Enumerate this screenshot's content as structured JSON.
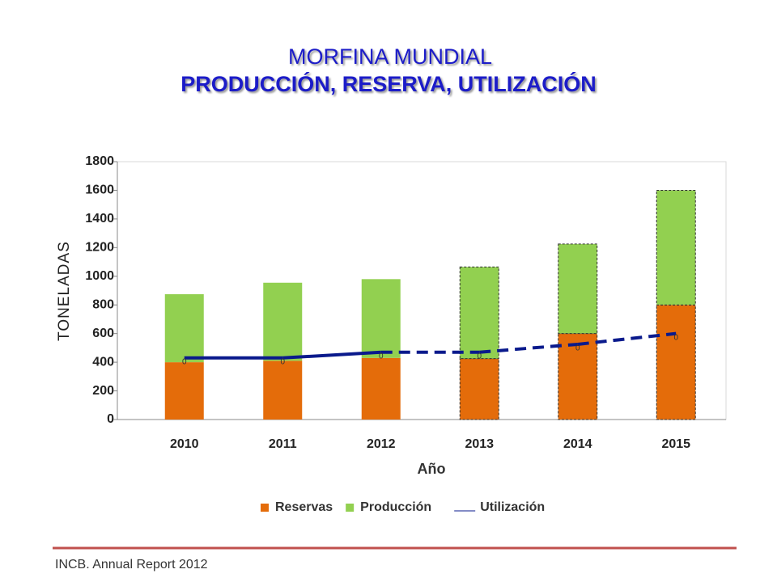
{
  "chart_data": {
    "type": "bar",
    "title": "MORFINA MUNDIAL",
    "subtitle": "PRODUCCIÓN, RESERVA, UTILIZACIÓN",
    "x_label": "Año",
    "y_label": "TONELADAS",
    "categories": [
      "2010",
      "2011",
      "2012",
      "2013",
      "2014",
      "2015"
    ],
    "series": [
      {
        "name": "Reservas",
        "color": "#e46c0a",
        "values": [
          400,
          410,
          430,
          425,
          600,
          800
        ]
      },
      {
        "name": "Producción",
        "color": "#92d050",
        "values": [
          475,
          545,
          550,
          640,
          625,
          800
        ]
      },
      {
        "name": "Utilización",
        "color": "#0a1a8c",
        "type": "line",
        "values": [
          430,
          430,
          470,
          470,
          525,
          600
        ]
      }
    ],
    "point_labels": [
      "0",
      "0",
      "0",
      "0",
      "0",
      "0"
    ],
    "projection_from": "2013",
    "ylim": [
      0,
      1800
    ],
    "yticks": [
      0,
      200,
      400,
      600,
      800,
      1000,
      1200,
      1400,
      1600,
      1800
    ],
    "stacked": true,
    "legend": "bottom",
    "source": "INCB. Annual Report 2012"
  }
}
